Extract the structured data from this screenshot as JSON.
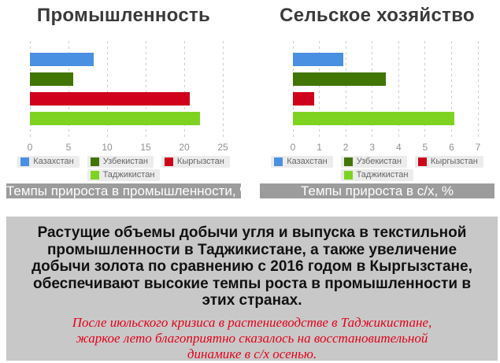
{
  "chart_data": [
    {
      "type": "bar",
      "orientation": "horizontal",
      "title": "Промышленность",
      "caption": "Темпы прироста в промышленности, %",
      "categories": [
        "Казахстан",
        "Узбекистан",
        "Кыргызстан",
        "Таджикистан"
      ],
      "values": [
        8.3,
        5.6,
        20.7,
        22.0
      ],
      "colors": [
        "#4a90e2",
        "#417505",
        "#d0021b",
        "#7ed321"
      ],
      "xlim": [
        0,
        25
      ],
      "xticks": [
        0,
        5,
        10,
        15,
        20,
        25
      ],
      "grid": "vertical-dashed",
      "legend_position": "bottom"
    },
    {
      "type": "bar",
      "orientation": "horizontal",
      "title": "Сельское хозяйство",
      "caption": "Темпы прироста в с/х, %",
      "categories": [
        "Казахстан",
        "Узбекистан",
        "Кыргызстан",
        "Таджикистан"
      ],
      "values": [
        1.9,
        3.5,
        0.8,
        6.1
      ],
      "colors": [
        "#4a90e2",
        "#417505",
        "#d0021b",
        "#7ed321"
      ],
      "xlim": [
        0,
        7
      ],
      "xticks": [
        0,
        1,
        2,
        3,
        4,
        5,
        6,
        7
      ],
      "grid": "vertical-dashed",
      "legend_position": "bottom"
    }
  ],
  "info_box": {
    "main_text": "Растущие объемы добычи угля и выпуска в текстильной промышленности в Таджикистане, а также увеличение добычи золота по сравнению с 2016 годом в Кыргызстане, обеспечивают высокие темпы роста в промышленности в этих странах.",
    "note_text": "После июльского кризиса в растениеводстве в Таджикистане, жаркое лето благоприятно сказалось на восстановительной динамике в с/х осенью."
  },
  "colors": {
    "title_text": "#3a3a3a",
    "axis_label": "#909090",
    "gridline": "#cccccc",
    "legend_item_bg": "#ececec",
    "legend_text": "#666666",
    "caption_bar_bg": "#9c9c9c",
    "caption_text": "#ffffff",
    "info_box_bg": "#c8c8c8",
    "info_main_text": "#111111",
    "info_note_text": "#e30019",
    "page_bg": "#ffffff"
  }
}
